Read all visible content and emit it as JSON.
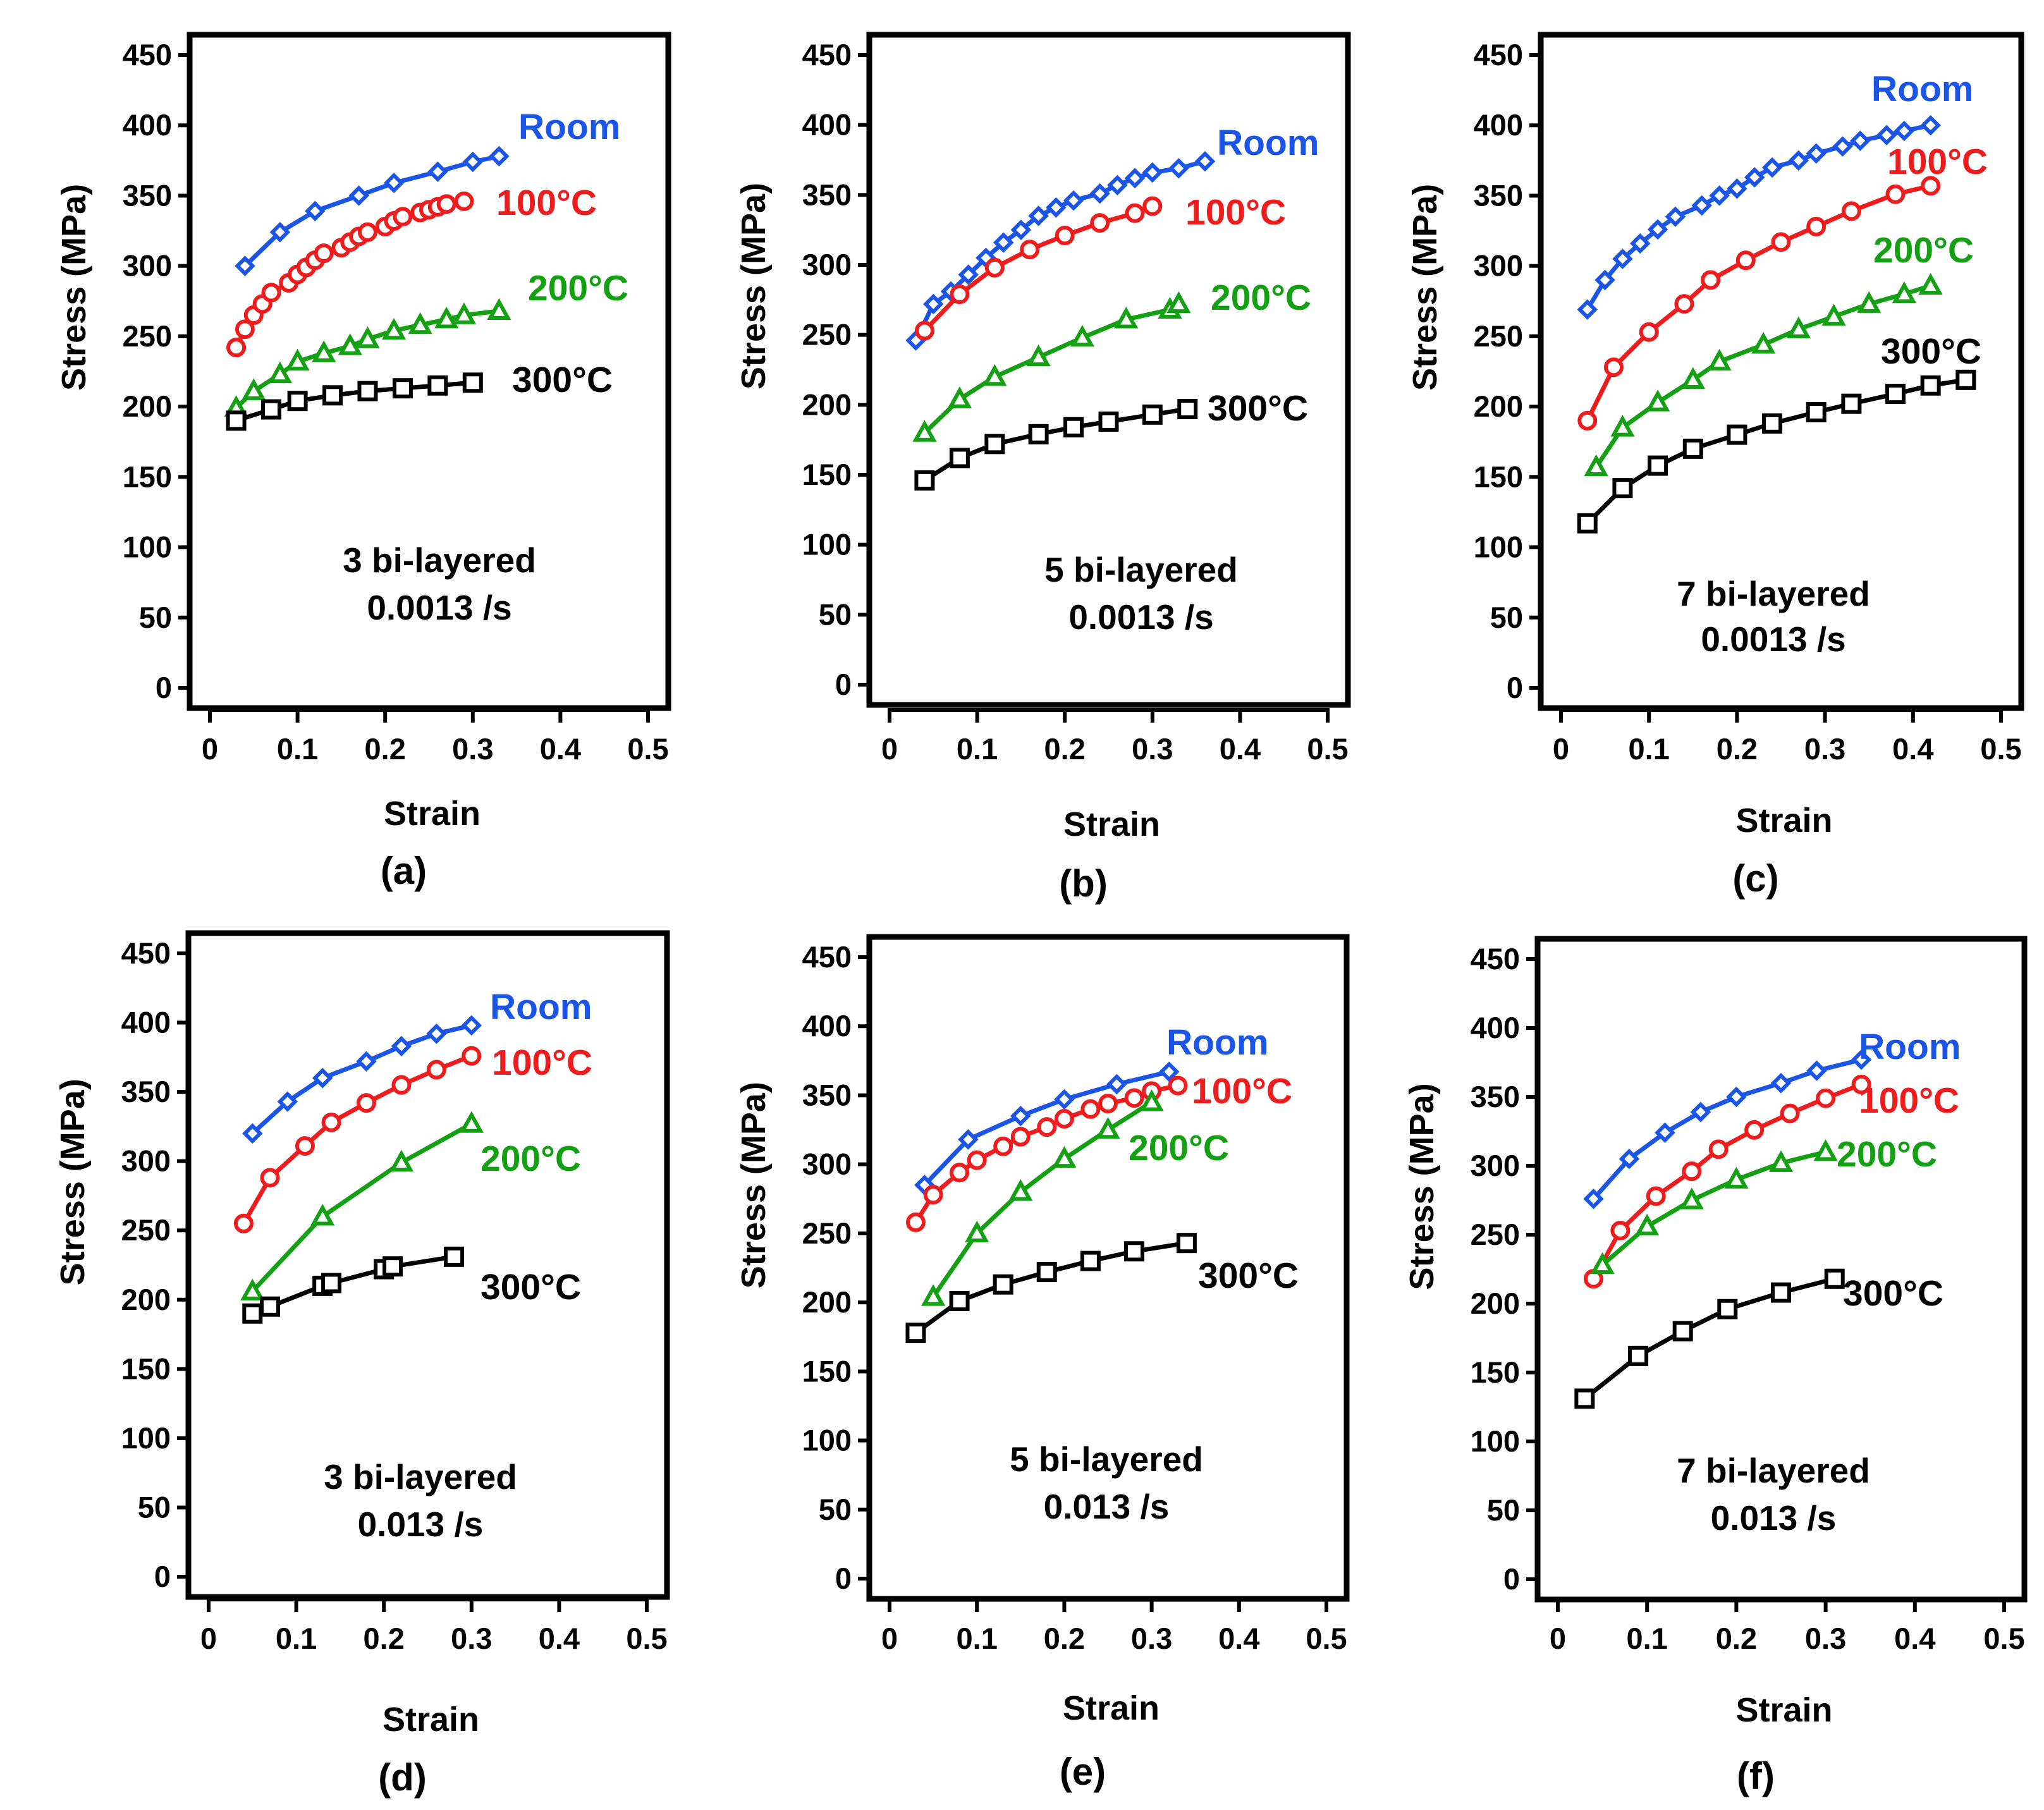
{
  "colors": {
    "room": "#1a55e8",
    "c100": "#ee1c1c",
    "c200": "#13a013",
    "c300": "#000000"
  },
  "chart_data": [
    {
      "panel": "(a)",
      "type": "line",
      "xlabel": "Strain",
      "ylabel": "Stress (MPa)",
      "xlim": [
        0,
        0.5
      ],
      "ylim": [
        0,
        450
      ],
      "xticks": [
        "0",
        "0.1",
        "0.2",
        "0.3",
        "0.4",
        "0.5"
      ],
      "yticks": [
        "0",
        "50",
        "100",
        "150",
        "200",
        "250",
        "300",
        "350",
        "400",
        "450"
      ],
      "annotation": [
        "3 bi-layered",
        "0.0013 /s"
      ],
      "series": [
        {
          "name": "Room",
          "marker": "diamond",
          "x": [
            0.04,
            0.08,
            0.12,
            0.17,
            0.21,
            0.26,
            0.3,
            0.33
          ],
          "y": [
            300,
            324,
            339,
            350,
            359,
            367,
            374,
            378
          ]
        },
        {
          "name": "100°C",
          "marker": "circle",
          "x": [
            0.03,
            0.04,
            0.05,
            0.06,
            0.07,
            0.09,
            0.1,
            0.11,
            0.12,
            0.13,
            0.15,
            0.16,
            0.17,
            0.18,
            0.2,
            0.21,
            0.22,
            0.24,
            0.25,
            0.26,
            0.27,
            0.29
          ],
          "y": [
            242,
            255,
            265,
            273,
            281,
            288,
            294,
            299,
            304,
            309,
            313,
            317,
            321,
            324,
            328,
            332,
            335,
            338,
            340,
            342,
            344,
            346
          ]
        },
        {
          "name": "200°C",
          "marker": "triangle",
          "x": [
            0.03,
            0.05,
            0.08,
            0.1,
            0.13,
            0.16,
            0.18,
            0.21,
            0.24,
            0.27,
            0.29,
            0.33
          ],
          "y": [
            199,
            211,
            223,
            232,
            238,
            243,
            248,
            254,
            258,
            262,
            265,
            268
          ]
        },
        {
          "name": "300°C",
          "marker": "square",
          "x": [
            0.03,
            0.07,
            0.1,
            0.14,
            0.18,
            0.22,
            0.26,
            0.3
          ],
          "y": [
            190,
            198,
            204,
            208,
            211,
            213,
            215,
            217
          ]
        }
      ]
    },
    {
      "panel": "(b)",
      "type": "line",
      "xlabel": "Strain",
      "ylabel": "Stress (MPa)",
      "xlim": [
        0,
        0.5
      ],
      "ylim": [
        0,
        450
      ],
      "xticks": [
        "0",
        "0.1",
        "0.2",
        "0.3",
        "0.4",
        "0.5"
      ],
      "yticks": [
        "0",
        "50",
        "100",
        "150",
        "200",
        "250",
        "300",
        "350",
        "400",
        "450"
      ],
      "annotation": [
        "5 bi-layered",
        "0.0013 /s"
      ],
      "series": [
        {
          "name": "Room",
          "marker": "diamond",
          "x": [
            0.03,
            0.05,
            0.07,
            0.09,
            0.11,
            0.13,
            0.15,
            0.17,
            0.19,
            0.21,
            0.24,
            0.26,
            0.28,
            0.3,
            0.33,
            0.36
          ],
          "y": [
            246,
            272,
            281,
            293,
            305,
            316,
            325,
            335,
            341,
            346,
            351,
            357,
            362,
            366,
            369,
            374
          ]
        },
        {
          "name": "100°C",
          "marker": "circle",
          "x": [
            0.04,
            0.08,
            0.12,
            0.16,
            0.2,
            0.24,
            0.28,
            0.3
          ],
          "y": [
            253,
            279,
            298,
            311,
            321,
            330,
            337,
            342
          ]
        },
        {
          "name": "200°C",
          "marker": "triangle",
          "x": [
            0.04,
            0.08,
            0.12,
            0.17,
            0.22,
            0.27,
            0.32,
            0.33
          ],
          "y": [
            180,
            204,
            220,
            234,
            248,
            261,
            268,
            272
          ]
        },
        {
          "name": "300°C",
          "marker": "square",
          "x": [
            0.04,
            0.08,
            0.12,
            0.17,
            0.21,
            0.25,
            0.3,
            0.34
          ],
          "y": [
            146,
            162,
            172,
            179,
            184,
            188,
            193,
            197
          ]
        }
      ]
    },
    {
      "panel": "(c)",
      "type": "line",
      "xlabel": "Strain",
      "ylabel": "Stress (MPa)",
      "xlim": [
        0,
        0.5
      ],
      "ylim": [
        0,
        450
      ],
      "xticks": [
        "0",
        "0.1",
        "0.2",
        "0.3",
        "0.4",
        "0.5"
      ],
      "yticks": [
        "0",
        "50",
        "100",
        "150",
        "200",
        "250",
        "300",
        "350",
        "400",
        "450"
      ],
      "annotation": [
        "7 bi-layered",
        "0.0013 /s"
      ],
      "series": [
        {
          "name": "Room",
          "marker": "diamond",
          "x": [
            0.03,
            0.05,
            0.07,
            0.09,
            0.11,
            0.13,
            0.16,
            0.18,
            0.2,
            0.22,
            0.24,
            0.27,
            0.29,
            0.32,
            0.34,
            0.37,
            0.39,
            0.42
          ],
          "y": [
            269,
            290,
            305,
            316,
            326,
            335,
            343,
            350,
            355,
            363,
            370,
            375,
            380,
            385,
            389,
            393,
            396,
            400
          ]
        },
        {
          "name": "100°C",
          "marker": "circle",
          "x": [
            0.03,
            0.06,
            0.1,
            0.14,
            0.17,
            0.21,
            0.25,
            0.29,
            0.33,
            0.38,
            0.42
          ],
          "y": [
            190,
            228,
            253,
            273,
            290,
            304,
            317,
            328,
            339,
            351,
            357
          ]
        },
        {
          "name": "200°C",
          "marker": "triangle",
          "x": [
            0.04,
            0.07,
            0.11,
            0.15,
            0.18,
            0.23,
            0.27,
            0.31,
            0.35,
            0.39,
            0.42
          ],
          "y": [
            157,
            185,
            203,
            219,
            232,
            244,
            255,
            264,
            273,
            280,
            286
          ]
        },
        {
          "name": "300°C",
          "marker": "square",
          "x": [
            0.03,
            0.07,
            0.11,
            0.15,
            0.2,
            0.24,
            0.29,
            0.33,
            0.38,
            0.42,
            0.46
          ],
          "y": [
            117,
            142,
            158,
            170,
            180,
            188,
            196,
            202,
            209,
            215,
            219
          ]
        }
      ]
    },
    {
      "panel": "(d)",
      "type": "line",
      "xlabel": "Strain",
      "ylabel": "Stress (MPa)",
      "xlim": [
        0,
        0.5
      ],
      "ylim": [
        0,
        450
      ],
      "xticks": [
        "0",
        "0.1",
        "0.2",
        "0.3",
        "0.4",
        "0.5"
      ],
      "yticks": [
        "0",
        "50",
        "100",
        "150",
        "200",
        "250",
        "300",
        "350",
        "400",
        "450"
      ],
      "annotation": [
        "3 bi-layered",
        "0.013 /s"
      ],
      "series": [
        {
          "name": "Room",
          "marker": "diamond",
          "x": [
            0.05,
            0.09,
            0.13,
            0.18,
            0.22,
            0.26,
            0.3
          ],
          "y": [
            320,
            343,
            360,
            372,
            383,
            392,
            398
          ]
        },
        {
          "name": "100°C",
          "marker": "circle",
          "x": [
            0.04,
            0.07,
            0.11,
            0.14,
            0.18,
            0.22,
            0.26,
            0.3
          ],
          "y": [
            255,
            288,
            311,
            328,
            342,
            355,
            366,
            376
          ]
        },
        {
          "name": "200°C",
          "marker": "triangle",
          "x": [
            0.05,
            0.13,
            0.22,
            0.3
          ],
          "y": [
            206,
            260,
            299,
            327
          ]
        },
        {
          "name": "300°C",
          "marker": "square",
          "x": [
            0.05,
            0.07,
            0.13,
            0.14,
            0.2,
            0.21,
            0.28
          ],
          "y": [
            190,
            195,
            210,
            212,
            222,
            224,
            231
          ]
        }
      ]
    },
    {
      "panel": "(e)",
      "type": "line",
      "xlabel": "Strain",
      "ylabel": "Stress (MPa)",
      "xlim": [
        0,
        0.5
      ],
      "ylim": [
        0,
        450
      ],
      "xticks": [
        "0",
        "0.1",
        "0.2",
        "0.3",
        "0.4",
        "0.5"
      ],
      "yticks": [
        "0",
        "50",
        "100",
        "150",
        "200",
        "250",
        "300",
        "350",
        "400",
        "450"
      ],
      "annotation": [
        "5 bi-layered",
        "0.013 /s"
      ],
      "series": [
        {
          "name": "Room",
          "marker": "diamond",
          "x": [
            0.04,
            0.09,
            0.15,
            0.2,
            0.26,
            0.32
          ],
          "y": [
            285,
            318,
            335,
            347,
            358,
            367
          ]
        },
        {
          "name": "100°C",
          "marker": "circle",
          "x": [
            0.03,
            0.05,
            0.08,
            0.1,
            0.13,
            0.15,
            0.18,
            0.2,
            0.23,
            0.25,
            0.28,
            0.3,
            0.33
          ],
          "y": [
            258,
            278,
            294,
            303,
            313,
            320,
            327,
            333,
            340,
            344,
            348,
            353,
            357
          ]
        },
        {
          "name": "200°C",
          "marker": "triangle",
          "x": [
            0.05,
            0.1,
            0.15,
            0.2,
            0.25,
            0.3
          ],
          "y": [
            204,
            250,
            280,
            304,
            325,
            345
          ]
        },
        {
          "name": "300°C",
          "marker": "square",
          "x": [
            0.03,
            0.08,
            0.13,
            0.18,
            0.23,
            0.28,
            0.34
          ],
          "y": [
            178,
            201,
            213,
            222,
            230,
            237,
            243
          ]
        }
      ]
    },
    {
      "panel": "(f)",
      "type": "line",
      "xlabel": "Strain",
      "ylabel": "Stress (MPa)",
      "xlim": [
        0,
        0.5
      ],
      "ylim": [
        0,
        450
      ],
      "xticks": [
        "0",
        "0.1",
        "0.2",
        "0.3",
        "0.4",
        "0.5"
      ],
      "yticks": [
        "0",
        "50",
        "100",
        "150",
        "200",
        "250",
        "300",
        "350",
        "400",
        "450"
      ],
      "annotation": [
        "7 bi-layered",
        "0.013 /s"
      ],
      "series": [
        {
          "name": "Room",
          "marker": "diamond",
          "x": [
            0.04,
            0.08,
            0.12,
            0.16,
            0.2,
            0.25,
            0.29,
            0.34
          ],
          "y": [
            276,
            305,
            324,
            339,
            350,
            360,
            369,
            377
          ]
        },
        {
          "name": "100°C",
          "marker": "circle",
          "x": [
            0.04,
            0.07,
            0.11,
            0.15,
            0.18,
            0.22,
            0.26,
            0.3,
            0.34
          ],
          "y": [
            218,
            253,
            278,
            296,
            312,
            326,
            338,
            349,
            359
          ]
        },
        {
          "name": "200°C",
          "marker": "triangle",
          "x": [
            0.05,
            0.1,
            0.15,
            0.2,
            0.25,
            0.3
          ],
          "y": [
            228,
            256,
            275,
            290,
            302,
            310
          ]
        },
        {
          "name": "300°C",
          "marker": "square",
          "x": [
            0.03,
            0.09,
            0.14,
            0.19,
            0.25,
            0.31
          ],
          "y": [
            131,
            162,
            180,
            196,
            208,
            218
          ]
        }
      ]
    }
  ]
}
